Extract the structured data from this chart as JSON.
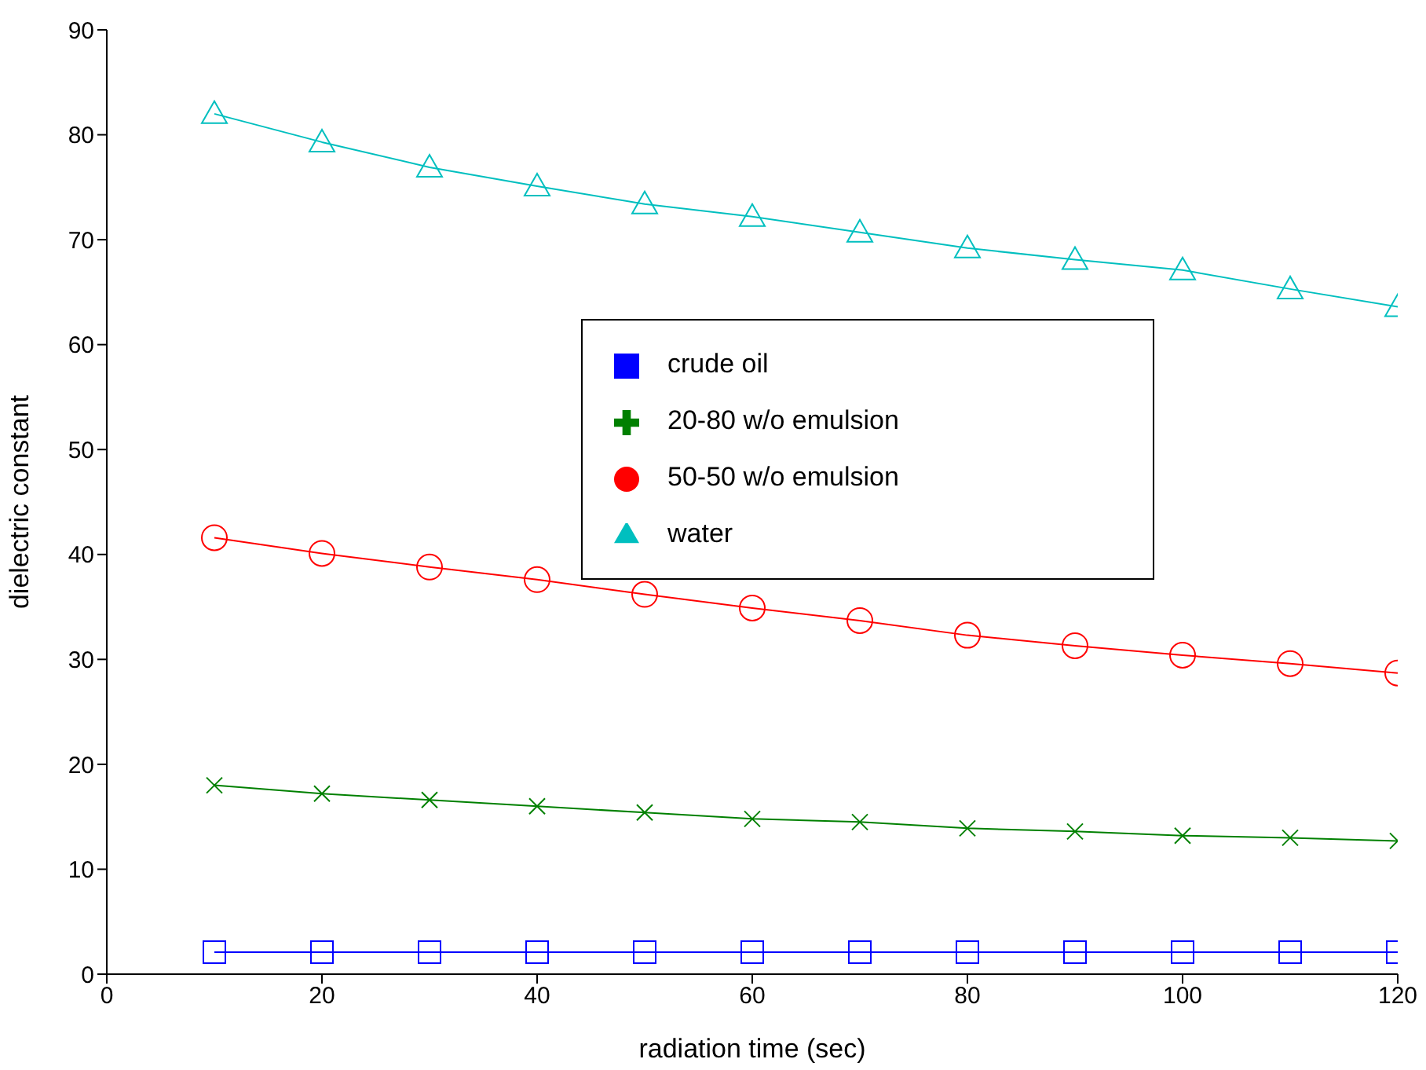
{
  "chart_data": {
    "type": "line",
    "xlabel": "radiation time (sec)",
    "ylabel": "dielectric constant",
    "x": [
      10,
      20,
      30,
      40,
      50,
      60,
      70,
      80,
      90,
      100,
      110,
      120
    ],
    "series": [
      {
        "name": "crude oil",
        "color": "#0000ff",
        "marker": "square",
        "values": [
          2.1,
          2.1,
          2.1,
          2.1,
          2.1,
          2.1,
          2.1,
          2.1,
          2.1,
          2.1,
          2.1,
          2.1
        ]
      },
      {
        "name": "20-80 w/o emulsion",
        "color": "#008000",
        "marker": "cross",
        "values": [
          18.0,
          17.2,
          16.6,
          16.0,
          15.4,
          14.8,
          14.5,
          13.9,
          13.6,
          13.2,
          13.0,
          12.7
        ]
      },
      {
        "name": "50-50 w/o emulsion",
        "color": "#ff0000",
        "marker": "circle",
        "values": [
          41.6,
          40.1,
          38.8,
          37.6,
          36.2,
          34.9,
          33.7,
          32.3,
          31.3,
          30.4,
          29.6,
          28.7
        ]
      },
      {
        "name": "water",
        "color": "#00bfbf",
        "marker": "triangle",
        "values": [
          82.0,
          79.3,
          76.9,
          75.1,
          73.4,
          72.2,
          70.7,
          69.2,
          68.1,
          67.1,
          65.3,
          63.6
        ]
      }
    ],
    "xlim": [
      0,
      120
    ],
    "xticks": [
      0,
      20,
      40,
      60,
      80,
      100,
      120
    ],
    "ylim": [
      0,
      90
    ],
    "yticks": [
      0,
      10,
      20,
      30,
      40,
      50,
      60,
      70,
      80,
      90
    ],
    "grid": false,
    "legend": "center",
    "line_style": "solid"
  }
}
